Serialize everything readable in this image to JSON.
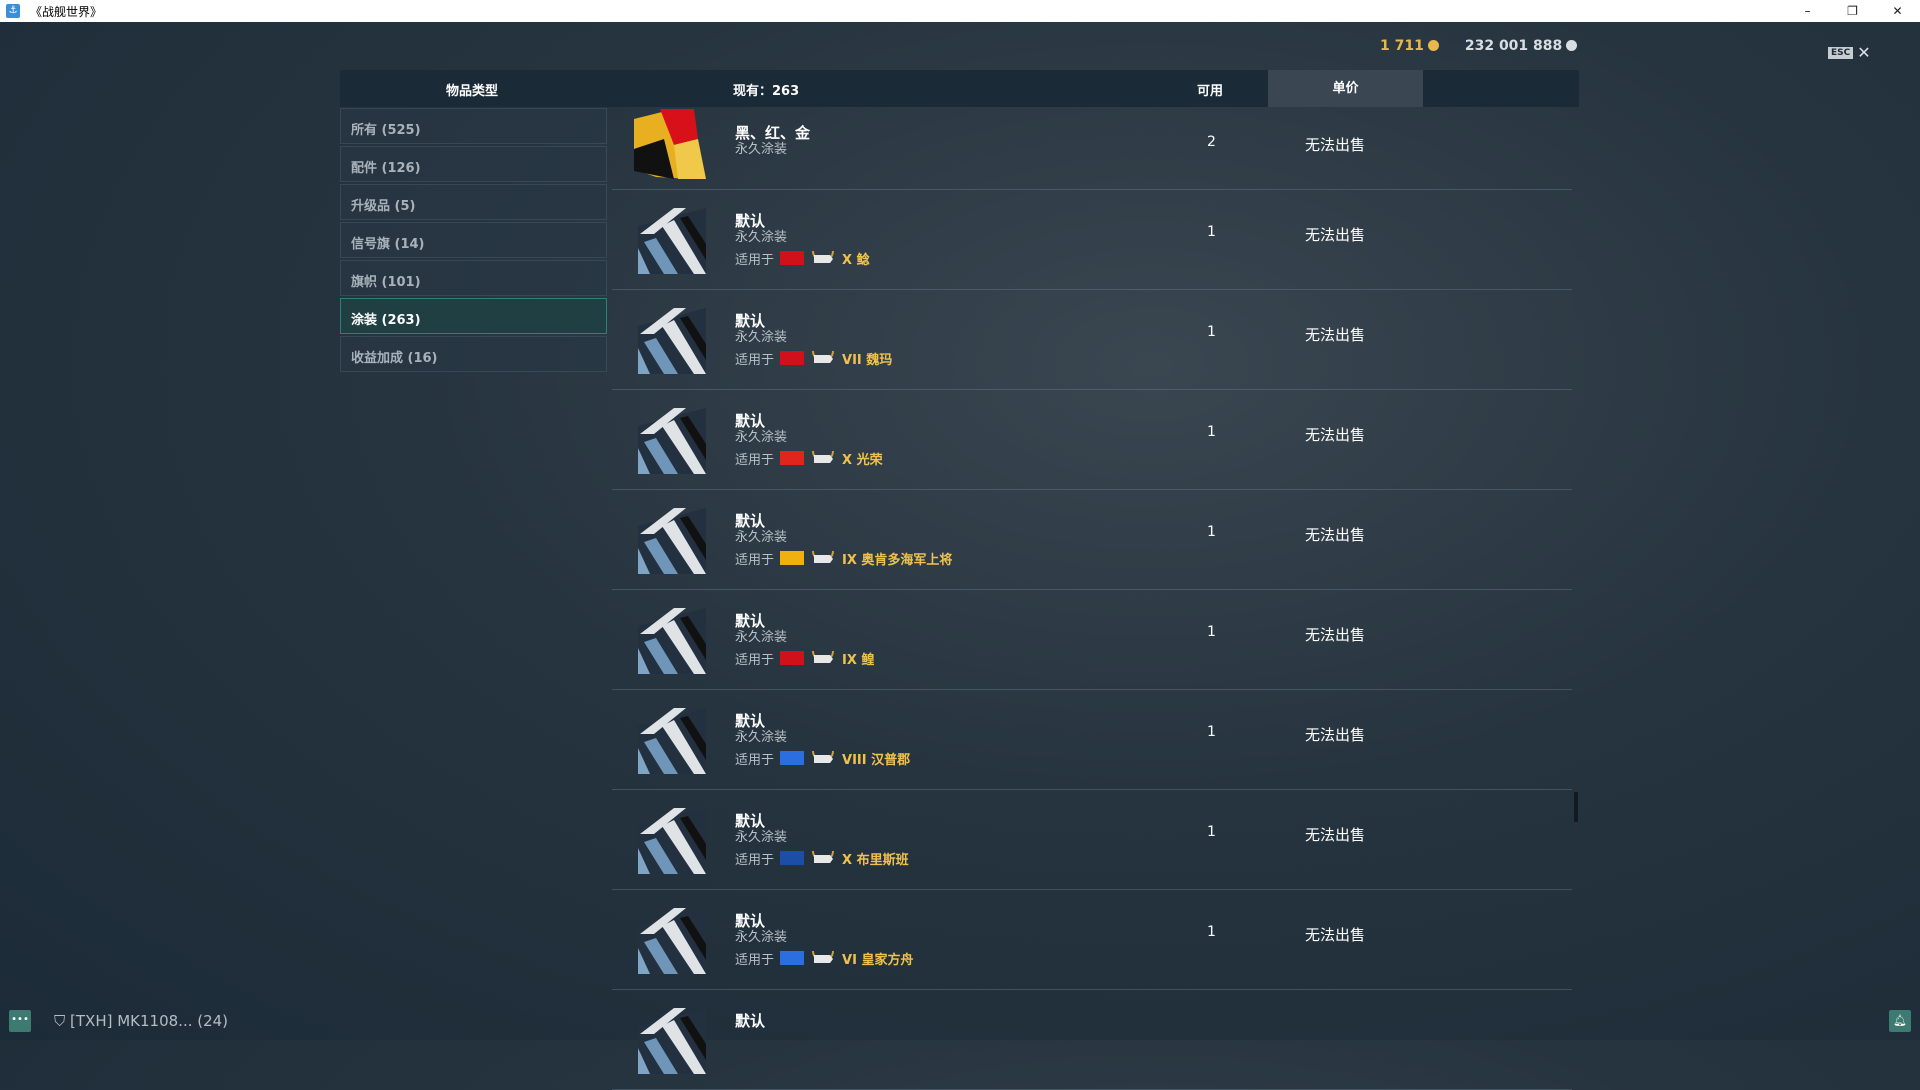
{
  "window": {
    "title": "《战舰世界》",
    "minimize": "–",
    "restore": "❐",
    "close": "✕"
  },
  "currency": {
    "gold": "1 711",
    "silver": "232 001 888",
    "gold_color": "#e8b84a",
    "silver_color": "#d8dde2"
  },
  "esc": {
    "key": "ESC",
    "close": "✕"
  },
  "header": {
    "category": "物品类型",
    "owned": "现有：263",
    "available": "可用",
    "price": "单价"
  },
  "sidebar": [
    {
      "label": "所有 (525)"
    },
    {
      "label": "配件 (126)"
    },
    {
      "label": "升级品 (5)"
    },
    {
      "label": "信号旗 (14)"
    },
    {
      "label": "旗帜 (101)"
    },
    {
      "label": "涂装 (263)",
      "active": true
    },
    {
      "label": "收益加成 (16)"
    }
  ],
  "rows": [
    {
      "name": "黑、红、金",
      "type": "永久涂装",
      "available": "2",
      "price": "无法出售",
      "thumb": "black-red-gold"
    },
    {
      "name": "默认",
      "type": "永久涂装",
      "applies": "适用于",
      "flag": "#d0101a",
      "ship": "X 鲶",
      "available": "1",
      "price": "无法出售",
      "thumb": "default"
    },
    {
      "name": "默认",
      "type": "永久涂装",
      "applies": "适用于",
      "flag": "#d0101a",
      "ship": "VII 魏玛",
      "available": "1",
      "price": "无法出售",
      "thumb": "default"
    },
    {
      "name": "默认",
      "type": "永久涂装",
      "applies": "适用于",
      "flag": "#e0261a",
      "ship": "X 光荣",
      "available": "1",
      "price": "无法出售",
      "thumb": "default"
    },
    {
      "name": "默认",
      "type": "永久涂装",
      "applies": "适用于",
      "flag": "#f0b010",
      "ship": "IX 奥肯多海军上将",
      "available": "1",
      "price": "无法出售",
      "thumb": "default"
    },
    {
      "name": "默认",
      "type": "永久涂装",
      "applies": "适用于",
      "flag": "#d0101a",
      "ship": "IX 鳇",
      "available": "1",
      "price": "无法出售",
      "thumb": "default"
    },
    {
      "name": "默认",
      "type": "永久涂装",
      "applies": "适用于",
      "flag": "#2a6ee0",
      "ship": "VIII 汉普郡",
      "available": "1",
      "price": "无法出售",
      "thumb": "default"
    },
    {
      "name": "默认",
      "type": "永久涂装",
      "applies": "适用于",
      "flag": "#1c4ea8",
      "ship": "X 布里斯班",
      "available": "1",
      "price": "无法出售",
      "thumb": "default"
    },
    {
      "name": "默认",
      "type": "永久涂装",
      "applies": "适用于",
      "flag": "#2a6ee0",
      "ship": "VI 皇家方舟",
      "available": "1",
      "price": "无法出售",
      "thumb": "default"
    },
    {
      "name": "默认",
      "thumb": "default"
    }
  ],
  "bottom": {
    "clan": "[TXH]  MK1108...  (24)"
  }
}
